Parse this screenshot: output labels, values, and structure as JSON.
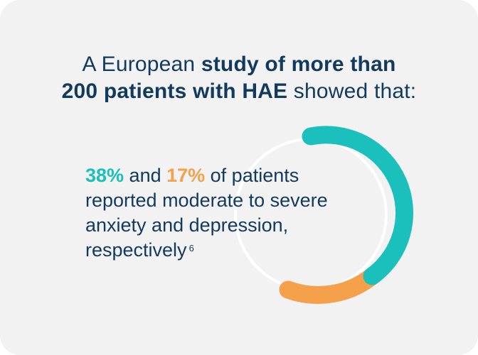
{
  "headline": {
    "part1": "A European ",
    "bold1": "study of more than",
    "bold2": "200 patients with HAE",
    "part2": " showed that:"
  },
  "stat": {
    "pct1": "38%",
    "pct1_color": "#1bbfbc",
    "and": " and ",
    "pct2": "17%",
    "pct2_color": "#f5a04a",
    "text": " of patients reported moderate to severe anxiety and depression, respectively",
    "footnote": "6"
  },
  "colors": {
    "background": "#f2f2f2",
    "text": "#123a5e",
    "teal_arc": "#1bbfbc",
    "orange_arc": "#f5a04a",
    "track": "#ffffff"
  }
}
